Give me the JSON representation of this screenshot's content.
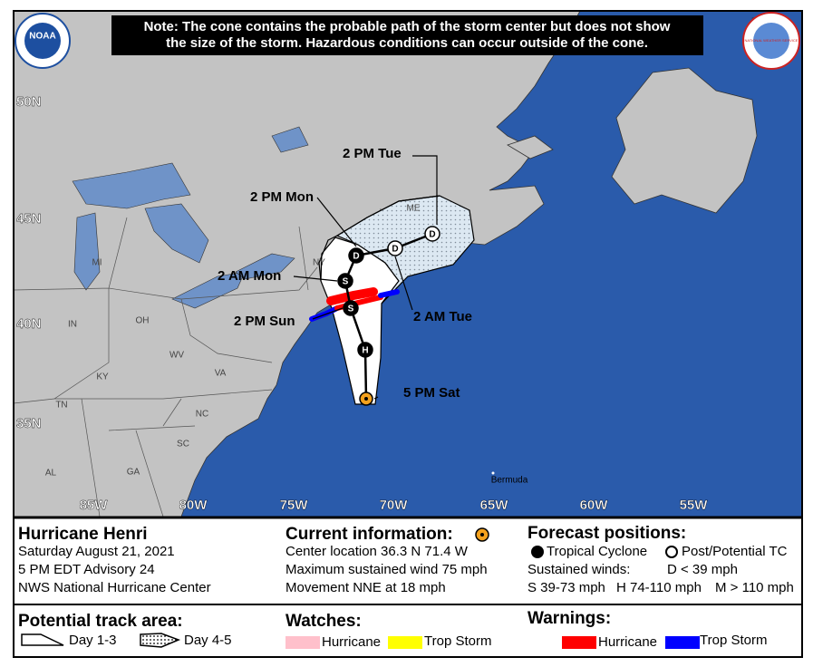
{
  "note": [
    "Note: The cone contains the probable path of the storm center but does not show",
    "the size of the storm. Hazardous conditions can occur outside of the cone."
  ],
  "logos": {
    "left": "NOAA",
    "right": "NATIONAL WEATHER SERVICE"
  },
  "map": {
    "latitude_labels": [
      "50N",
      "45N",
      "40N",
      "35N"
    ],
    "longitude_labels": [
      "85W",
      "80W",
      "75W",
      "70W",
      "65W",
      "60W",
      "55W"
    ],
    "region_labels": [
      "ME",
      "NY",
      "MI",
      "OH",
      "IN",
      "WV",
      "VA",
      "KY",
      "TN",
      "NC",
      "SC",
      "GA",
      "AL"
    ],
    "place_labels": [
      "Bermuda"
    ],
    "track_points": [
      {
        "marker": "",
        "label": "5 PM Sat"
      },
      {
        "marker": "H"
      },
      {
        "marker": "S",
        "label": "2 PM Sun"
      },
      {
        "marker": "S",
        "label": "2 AM Mon"
      },
      {
        "marker": "D",
        "label": "2 PM Mon"
      },
      {
        "marker": "D",
        "label": "2 AM Tue"
      },
      {
        "marker": "D",
        "label": "2 PM Tue"
      }
    ]
  },
  "legend": {
    "storm": {
      "name": "Hurricane Henri",
      "date": "Saturday August 21, 2021",
      "advisory": "5 PM EDT Advisory 24",
      "source": "NWS National Hurricane Center"
    },
    "current": {
      "title": "Current information:",
      "location": "Center location 36.3 N 71.4 W",
      "wind": "Maximum sustained wind 75 mph",
      "movement": "Movement NNE at 18 mph"
    },
    "forecast": {
      "title": "Forecast positions:",
      "tropical": "Tropical Cyclone",
      "post": "Post/Potential TC",
      "winds_title": "Sustained winds:",
      "d": "D < 39 mph",
      "s": "S 39-73 mph",
      "h": "H 74-110 mph",
      "m": "M > 110 mph"
    },
    "track_area": {
      "title": "Potential track area:",
      "day13": "Day 1-3",
      "day45": "Day 4-5"
    },
    "watches": {
      "title": "Watches:",
      "hurricane": "Hurricane",
      "tropical_storm": "Trop Storm"
    },
    "warnings": {
      "title": "Warnings:",
      "hurricane": "Hurricane",
      "tropical_storm": "Trop Storm"
    }
  }
}
